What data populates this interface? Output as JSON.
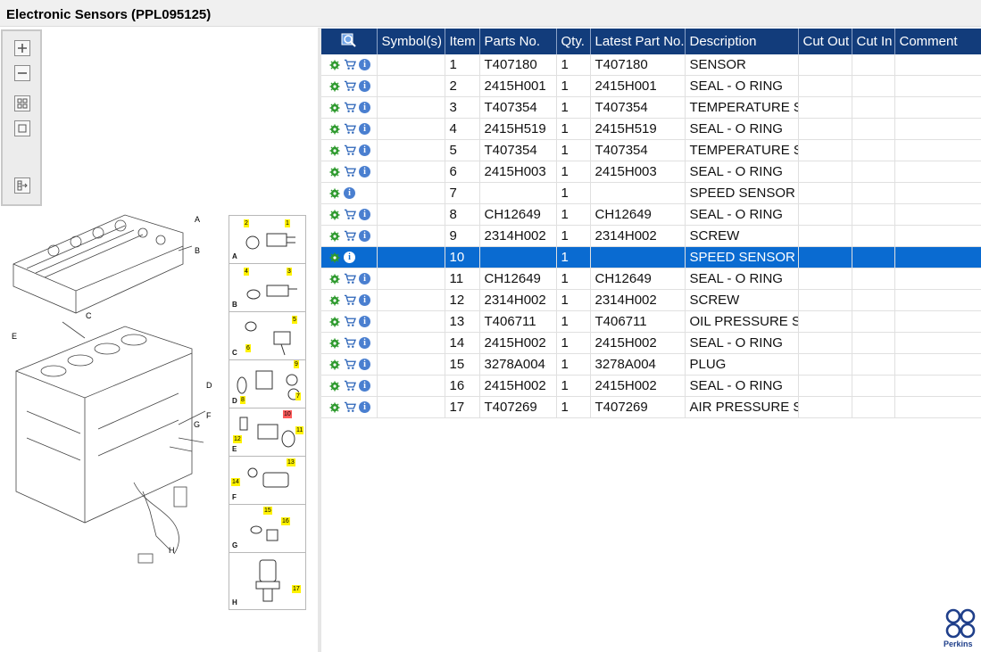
{
  "window": {
    "title": "Electronic Sensors (PPL095125)"
  },
  "toolbox": {
    "tools": [
      "zoom-in",
      "zoom-out",
      "fit-all",
      "fit-window",
      "export"
    ]
  },
  "illustration": {
    "callouts": [
      "A",
      "B",
      "C",
      "D",
      "E",
      "F",
      "G",
      "H"
    ],
    "details": [
      {
        "letter": "A",
        "tags": [
          "2",
          "1"
        ]
      },
      {
        "letter": "B",
        "tags": [
          "4",
          "3"
        ]
      },
      {
        "letter": "C",
        "tags": [
          "5",
          "6"
        ]
      },
      {
        "letter": "D",
        "tags": [
          "9",
          "8",
          "7"
        ]
      },
      {
        "letter": "E",
        "tags": [
          "10",
          "12",
          "11"
        ]
      },
      {
        "letter": "F",
        "tags": [
          "13",
          "14"
        ]
      },
      {
        "letter": "G",
        "tags": [
          "15",
          "16"
        ]
      },
      {
        "letter": "H",
        "tags": [
          "17"
        ]
      }
    ]
  },
  "table": {
    "columns": [
      "",
      "Symbol(s)",
      "Item",
      "Parts No.",
      "Qty.",
      "Latest Part No.",
      "Description",
      "Cut Out",
      "Cut In",
      "Comment"
    ],
    "selected_item": "10",
    "rows": [
      {
        "cart": true,
        "item": "1",
        "parts_no": "T407180",
        "qty": "1",
        "latest": "T407180",
        "description": "SENSOR"
      },
      {
        "cart": true,
        "item": "2",
        "parts_no": "2415H001",
        "qty": "1",
        "latest": "2415H001",
        "description": "SEAL - O RING"
      },
      {
        "cart": true,
        "item": "3",
        "parts_no": "T407354",
        "qty": "1",
        "latest": "T407354",
        "description": "TEMPERATURE SEI"
      },
      {
        "cart": true,
        "item": "4",
        "parts_no": "2415H519",
        "qty": "1",
        "latest": "2415H519",
        "description": "SEAL - O RING"
      },
      {
        "cart": true,
        "item": "5",
        "parts_no": "T407354",
        "qty": "1",
        "latest": "T407354",
        "description": "TEMPERATURE SEI"
      },
      {
        "cart": true,
        "item": "6",
        "parts_no": "2415H003",
        "qty": "1",
        "latest": "2415H003",
        "description": "SEAL - O RING"
      },
      {
        "cart": false,
        "item": "7",
        "parts_no": "",
        "qty": "1",
        "latest": "",
        "description": "SPEED SENSOR"
      },
      {
        "cart": true,
        "item": "8",
        "parts_no": "CH12649",
        "qty": "1",
        "latest": "CH12649",
        "description": "SEAL - O RING"
      },
      {
        "cart": true,
        "item": "9",
        "parts_no": "2314H002",
        "qty": "1",
        "latest": "2314H002",
        "description": "SCREW"
      },
      {
        "cart": false,
        "item": "10",
        "parts_no": "",
        "qty": "1",
        "latest": "",
        "description": "SPEED SENSOR"
      },
      {
        "cart": true,
        "item": "11",
        "parts_no": "CH12649",
        "qty": "1",
        "latest": "CH12649",
        "description": "SEAL - O RING"
      },
      {
        "cart": true,
        "item": "12",
        "parts_no": "2314H002",
        "qty": "1",
        "latest": "2314H002",
        "description": "SCREW"
      },
      {
        "cart": true,
        "item": "13",
        "parts_no": "T406711",
        "qty": "1",
        "latest": "T406711",
        "description": "OIL PRESSURE SEN"
      },
      {
        "cart": true,
        "item": "14",
        "parts_no": "2415H002",
        "qty": "1",
        "latest": "2415H002",
        "description": "SEAL - O RING"
      },
      {
        "cart": true,
        "item": "15",
        "parts_no": "3278A004",
        "qty": "1",
        "latest": "3278A004",
        "description": "PLUG"
      },
      {
        "cart": true,
        "item": "16",
        "parts_no": "2415H002",
        "qty": "1",
        "latest": "2415H002",
        "description": "SEAL - O RING"
      },
      {
        "cart": true,
        "item": "17",
        "parts_no": "T407269",
        "qty": "1",
        "latest": "T407269",
        "description": "AIR PRESSURE SEN"
      }
    ]
  },
  "brand": {
    "logo_text": "Perkins"
  },
  "colors": {
    "header_bg": "#123c7b",
    "selected_row": "#0a6bd1",
    "gear": "#2e9a2e",
    "cart": "#2a63b8",
    "info": "#4a7fd0"
  }
}
